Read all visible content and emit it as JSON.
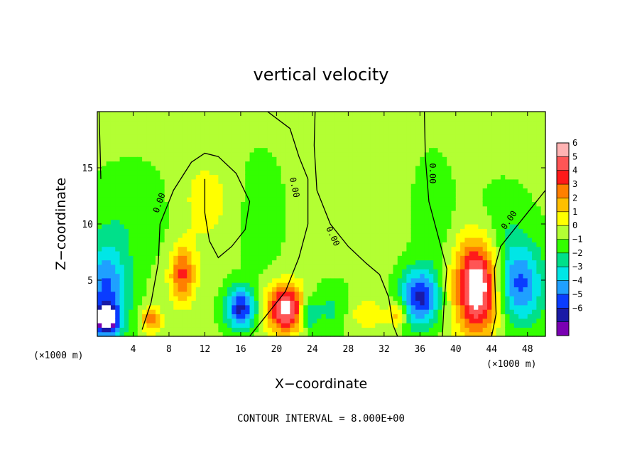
{
  "chart_data": {
    "type": "heatmap",
    "title": "vertical velocity",
    "xlabel": "X−coordinate",
    "ylabel": "Z−coordinate",
    "x_unit_left": "(×1000 m)",
    "x_unit_right": "(×1000 m)",
    "xlim": [
      0,
      50
    ],
    "ylim": [
      0,
      20
    ],
    "x_ticks": [
      4,
      8,
      12,
      16,
      20,
      24,
      28,
      32,
      36,
      40,
      44,
      48
    ],
    "y_ticks": [
      5,
      10,
      15
    ],
    "colorbar": {
      "ticks": [
        "6",
        "5",
        "4",
        "3",
        "2",
        "1",
        "0",
        "−1",
        "−2",
        "−3",
        "−4",
        "−5",
        "−6"
      ],
      "colors": [
        "#ffb3b3",
        "#ff5555",
        "#ff1a1a",
        "#ff7f00",
        "#ffbf00",
        "#ffff00",
        "#b3ff33",
        "#33ff00",
        "#00e08a",
        "#00e6e6",
        "#1fa0ff",
        "#0a3cff",
        "#1a1aa6",
        "#7a00b3"
      ]
    },
    "contour_label": "0.00",
    "blobs": [
      {
        "x": 42.5,
        "z": 4.5,
        "value": 7.5,
        "sx": 1.8,
        "sz": 3.0
      },
      {
        "x": 21.0,
        "z": 2.5,
        "value": 6.5,
        "sx": 1.5,
        "sz": 1.5
      },
      {
        "x": 9.5,
        "z": 5.5,
        "value": 4.0,
        "sx": 1.0,
        "sz": 1.8
      },
      {
        "x": 6.0,
        "z": 1.5,
        "value": 3.5,
        "sx": 0.8,
        "sz": 0.8
      },
      {
        "x": 16.0,
        "z": 2.5,
        "value": -5.5,
        "sx": 1.2,
        "sz": 1.3
      },
      {
        "x": 36.0,
        "z": 3.5,
        "value": -5.5,
        "sx": 1.5,
        "sz": 1.8
      },
      {
        "x": 47.0,
        "z": 4.5,
        "value": -4.5,
        "sx": 2.0,
        "sz": 2.5
      },
      {
        "x": 1.0,
        "z": 4.0,
        "value": -4.5,
        "sx": 1.8,
        "sz": 3.0
      },
      {
        "x": 1.0,
        "z": 1.5,
        "value": -6.5,
        "sx": 0.9,
        "sz": 0.9
      },
      {
        "x": 23.5,
        "z": 2.0,
        "value": -3.0,
        "sx": 0.7,
        "sz": 1.0
      },
      {
        "x": 33.5,
        "z": 2.0,
        "value": 2.5,
        "sx": 0.8,
        "sz": 0.8
      },
      {
        "x": 30.0,
        "z": 2.0,
        "value": 1.5,
        "sx": 1.5,
        "sz": 1.0
      },
      {
        "x": 26.0,
        "z": 2.5,
        "value": -1.5,
        "sx": 1.5,
        "sz": 1.5
      },
      {
        "x": 4.0,
        "z": 11.0,
        "value": -1.0,
        "sx": 3.5,
        "sz": 3.0
      },
      {
        "x": 12.0,
        "z": 12.0,
        "value": 1.2,
        "sx": 2.5,
        "sz": 3.0
      },
      {
        "x": 18.0,
        "z": 11.0,
        "value": -0.8,
        "sx": 2.0,
        "sz": 4.0
      },
      {
        "x": 37.5,
        "z": 11.0,
        "value": -1.0,
        "sx": 1.5,
        "sz": 3.5
      },
      {
        "x": 45.0,
        "z": 9.0,
        "value": -1.2,
        "sx": 2.5,
        "sz": 3.0
      }
    ]
  },
  "footer": "CONTOUR INTERVAL = 8.000E+00"
}
